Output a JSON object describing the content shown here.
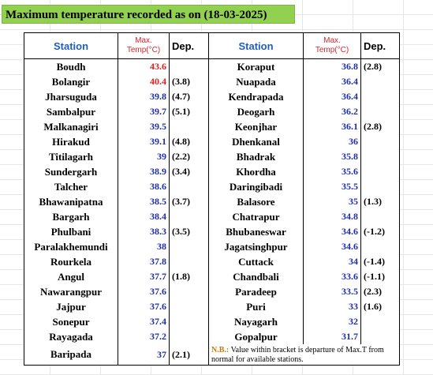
{
  "header": {
    "title": "Maximum temperature recorded as on (18-03-2025)"
  },
  "table": {
    "columns": [
      "Station",
      {
        "line1": "Max.",
        "line2": "Temp(°C)"
      },
      "Dep.",
      "Station",
      {
        "line1": "Max.",
        "line2": "Temp(°C)"
      },
      "Dep."
    ],
    "rows": [
      {
        "left": [
          "Boudh",
          43.6,
          null
        ],
        "right": [
          "Koraput",
          36.8,
          "(2.8)"
        ]
      },
      {
        "left": [
          "Bolangir",
          40.4,
          "(3.8)"
        ],
        "right": [
          "Nuapada",
          36.4,
          null
        ]
      },
      {
        "left": [
          "Jharsuguda",
          39.8,
          "(4.7)"
        ],
        "right": [
          "Kendrapada",
          36.4,
          null
        ]
      },
      {
        "left": [
          "Sambalpur",
          39.7,
          "(5.1)"
        ],
        "right": [
          "Deogarh",
          36.2,
          null
        ]
      },
      {
        "left": [
          "Malkanagiri",
          39.5,
          null
        ],
        "right": [
          "Keonjhar",
          36.1,
          "(2.8)"
        ]
      },
      {
        "left": [
          "Hirakud",
          39.1,
          "(4.8)"
        ],
        "right": [
          "Dhenkanal",
          36,
          null
        ]
      },
      {
        "left": [
          "Titilagarh",
          39,
          "(2.2)"
        ],
        "right": [
          "Bhadrak",
          35.8,
          null
        ]
      },
      {
        "left": [
          "Sundergarh",
          38.9,
          "(3.4)"
        ],
        "right": [
          "Khordha",
          35.6,
          null
        ]
      },
      {
        "left": [
          "Talcher",
          38.6,
          null
        ],
        "right": [
          "Daringibadi",
          35.5,
          null
        ]
      },
      {
        "left": [
          "Bhawanipatna",
          38.5,
          "(3.7)"
        ],
        "right": [
          "Balasore",
          35,
          "(1.3)"
        ]
      },
      {
        "left": [
          "Bargarh",
          38.4,
          null
        ],
        "right": [
          "Chatrapur",
          34.8,
          null
        ]
      },
      {
        "left": [
          "Phulbani",
          38.3,
          "(3.5)"
        ],
        "right": [
          "Bhubaneswar",
          34.6,
          "(-1.2)"
        ]
      },
      {
        "left": [
          "Paralakhemundi",
          38,
          null
        ],
        "right": [
          "Jagatsinghpur",
          34.6,
          null
        ]
      },
      {
        "left": [
          "Rourkela",
          37.8,
          null
        ],
        "right": [
          "Cuttack",
          34,
          "(-1.4)"
        ]
      },
      {
        "left": [
          "Angul",
          37.7,
          "(1.8)"
        ],
        "right": [
          "Chandbali",
          33.6,
          "(-1.1)"
        ]
      },
      {
        "left": [
          "Nawarangpur",
          37.6,
          null
        ],
        "right": [
          "Paradeep",
          33.5,
          "(2.3)"
        ]
      },
      {
        "left": [
          "Jajpur",
          37.6,
          null
        ],
        "right": [
          "Puri",
          33,
          "(1.6)"
        ]
      },
      {
        "left": [
          "Sonepur",
          37.4,
          null
        ],
        "right": [
          "Nayagarh",
          32,
          null
        ]
      },
      {
        "left": [
          "Rayagada",
          37.2,
          null
        ],
        "right": [
          "Gopalpur",
          31.7,
          null
        ]
      },
      {
        "left": [
          "Baripada",
          37,
          "(2.1)"
        ]
      }
    ],
    "note": {
      "label": "N.B.:",
      "text": "Value within bracket is departure of Max.T from normal for available stations."
    }
  }
}
